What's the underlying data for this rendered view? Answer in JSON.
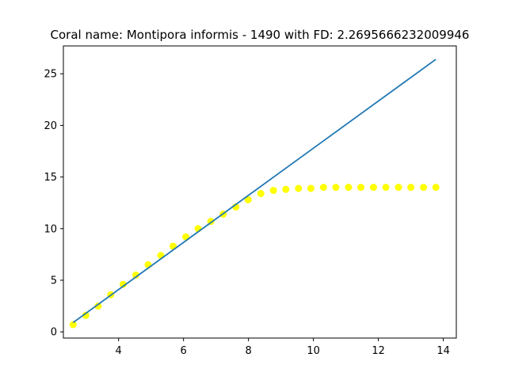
{
  "chart_data": {
    "type": "scatter",
    "title": "Coral name: Montipora informis - 1490 with FD: 2.2695666232009946",
    "xlabel": "",
    "ylabel": "",
    "xlim": [
      2.3,
      14.4
    ],
    "ylim": [
      -0.6,
      27.7
    ],
    "xticks": [
      4,
      6,
      8,
      10,
      12,
      14
    ],
    "yticks": [
      0,
      5,
      10,
      15,
      20,
      25
    ],
    "grid": false,
    "legend": "none",
    "series": [
      {
        "kind": "scatter",
        "color": "#ffff00",
        "x": [
          2.6,
          2.99,
          3.37,
          3.76,
          4.14,
          4.53,
          4.91,
          5.3,
          5.68,
          6.07,
          6.45,
          6.84,
          7.22,
          7.61,
          7.99,
          8.38,
          8.77,
          9.15,
          9.54,
          9.92,
          10.31,
          10.69,
          11.08,
          11.46,
          11.85,
          12.23,
          12.62,
          13.0,
          13.39,
          13.77
        ],
        "y": [
          0.7,
          1.6,
          2.5,
          3.6,
          4.6,
          5.5,
          6.5,
          7.4,
          8.3,
          9.2,
          10.0,
          10.7,
          11.4,
          12.1,
          12.8,
          13.4,
          13.7,
          13.8,
          13.9,
          13.9,
          14.0,
          14.0,
          14.0,
          14.0,
          14.0,
          14.0,
          14.0,
          14.0,
          14.0,
          14.0
        ]
      },
      {
        "kind": "line",
        "color": "#1f77b4",
        "x": [
          2.6,
          13.77
        ],
        "y": [
          0.9,
          26.4
        ]
      }
    ]
  }
}
